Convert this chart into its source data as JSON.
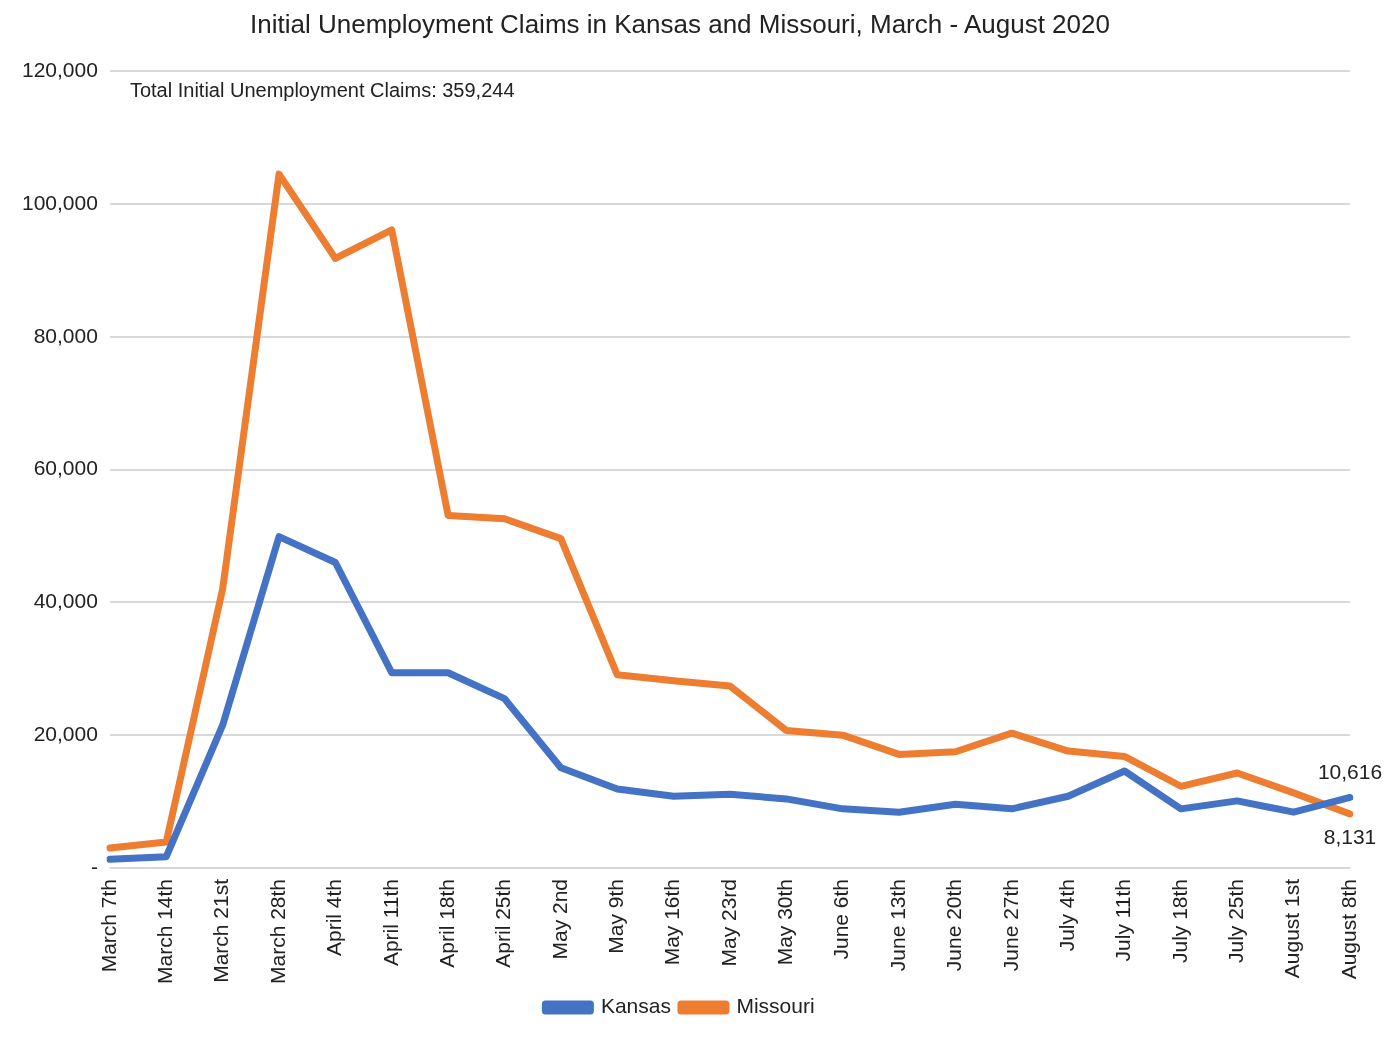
{
  "chart_data": {
    "type": "line",
    "title": "Initial Unemployment Claims in Kansas and Missouri, March - August 2020",
    "categories": [
      "March 7th",
      "March 14th",
      "March 21st",
      "March 28th",
      "April 4th",
      "April 11th",
      "April 18th",
      "April 25th",
      "May 2nd",
      "May 9th",
      "May 16th",
      "May 23rd",
      "May 30th",
      "June 6th",
      "June 13th",
      "June 20th",
      "June 27th",
      "July 4th",
      "July 11th",
      "July 18th",
      "July 25th",
      "August 1st",
      "August 8th"
    ],
    "series": [
      {
        "name": "Kansas",
        "color": "#4472c4",
        "values": [
          1300,
          1700,
          21500,
          49900,
          46000,
          29400,
          29400,
          25500,
          15100,
          11900,
          10800,
          11100,
          10400,
          8900,
          8400,
          9600,
          8900,
          10800,
          14600,
          8900,
          10100,
          8400,
          10616
        ],
        "value_labels": [
          null,
          null,
          null,
          null,
          null,
          null,
          null,
          null,
          null,
          null,
          null,
          null,
          null,
          null,
          null,
          null,
          null,
          null,
          null,
          null,
          null,
          null,
          "10,616"
        ]
      },
      {
        "name": "Missouri",
        "color": "#ed7d31",
        "values": [
          3000,
          3900,
          42000,
          104500,
          91800,
          96100,
          53100,
          52600,
          49600,
          29100,
          28200,
          27400,
          20700,
          20000,
          17100,
          17500,
          20300,
          17600,
          16800,
          12300,
          14300,
          11300,
          8131
        ],
        "value_labels": [
          null,
          null,
          null,
          null,
          null,
          null,
          null,
          null,
          null,
          null,
          null,
          null,
          null,
          null,
          null,
          null,
          null,
          null,
          null,
          null,
          null,
          null,
          "8,131"
        ]
      }
    ],
    "ylim": [
      0,
      120000
    ],
    "yticks": [
      {
        "value": 0,
        "label": "-"
      },
      {
        "value": 20000,
        "label": "20,000"
      },
      {
        "value": 40000,
        "label": "40,000"
      },
      {
        "value": 60000,
        "label": "60,000"
      },
      {
        "value": 80000,
        "label": "80,000"
      },
      {
        "value": 100000,
        "label": "100,000"
      },
      {
        "value": 120000,
        "label": "120,000"
      }
    ],
    "grid": "y",
    "legend": "bottom",
    "marker": "none",
    "line_style": "solid",
    "annotations": [
      "Total Initial Unemployment Claims: 359,244"
    ]
  }
}
